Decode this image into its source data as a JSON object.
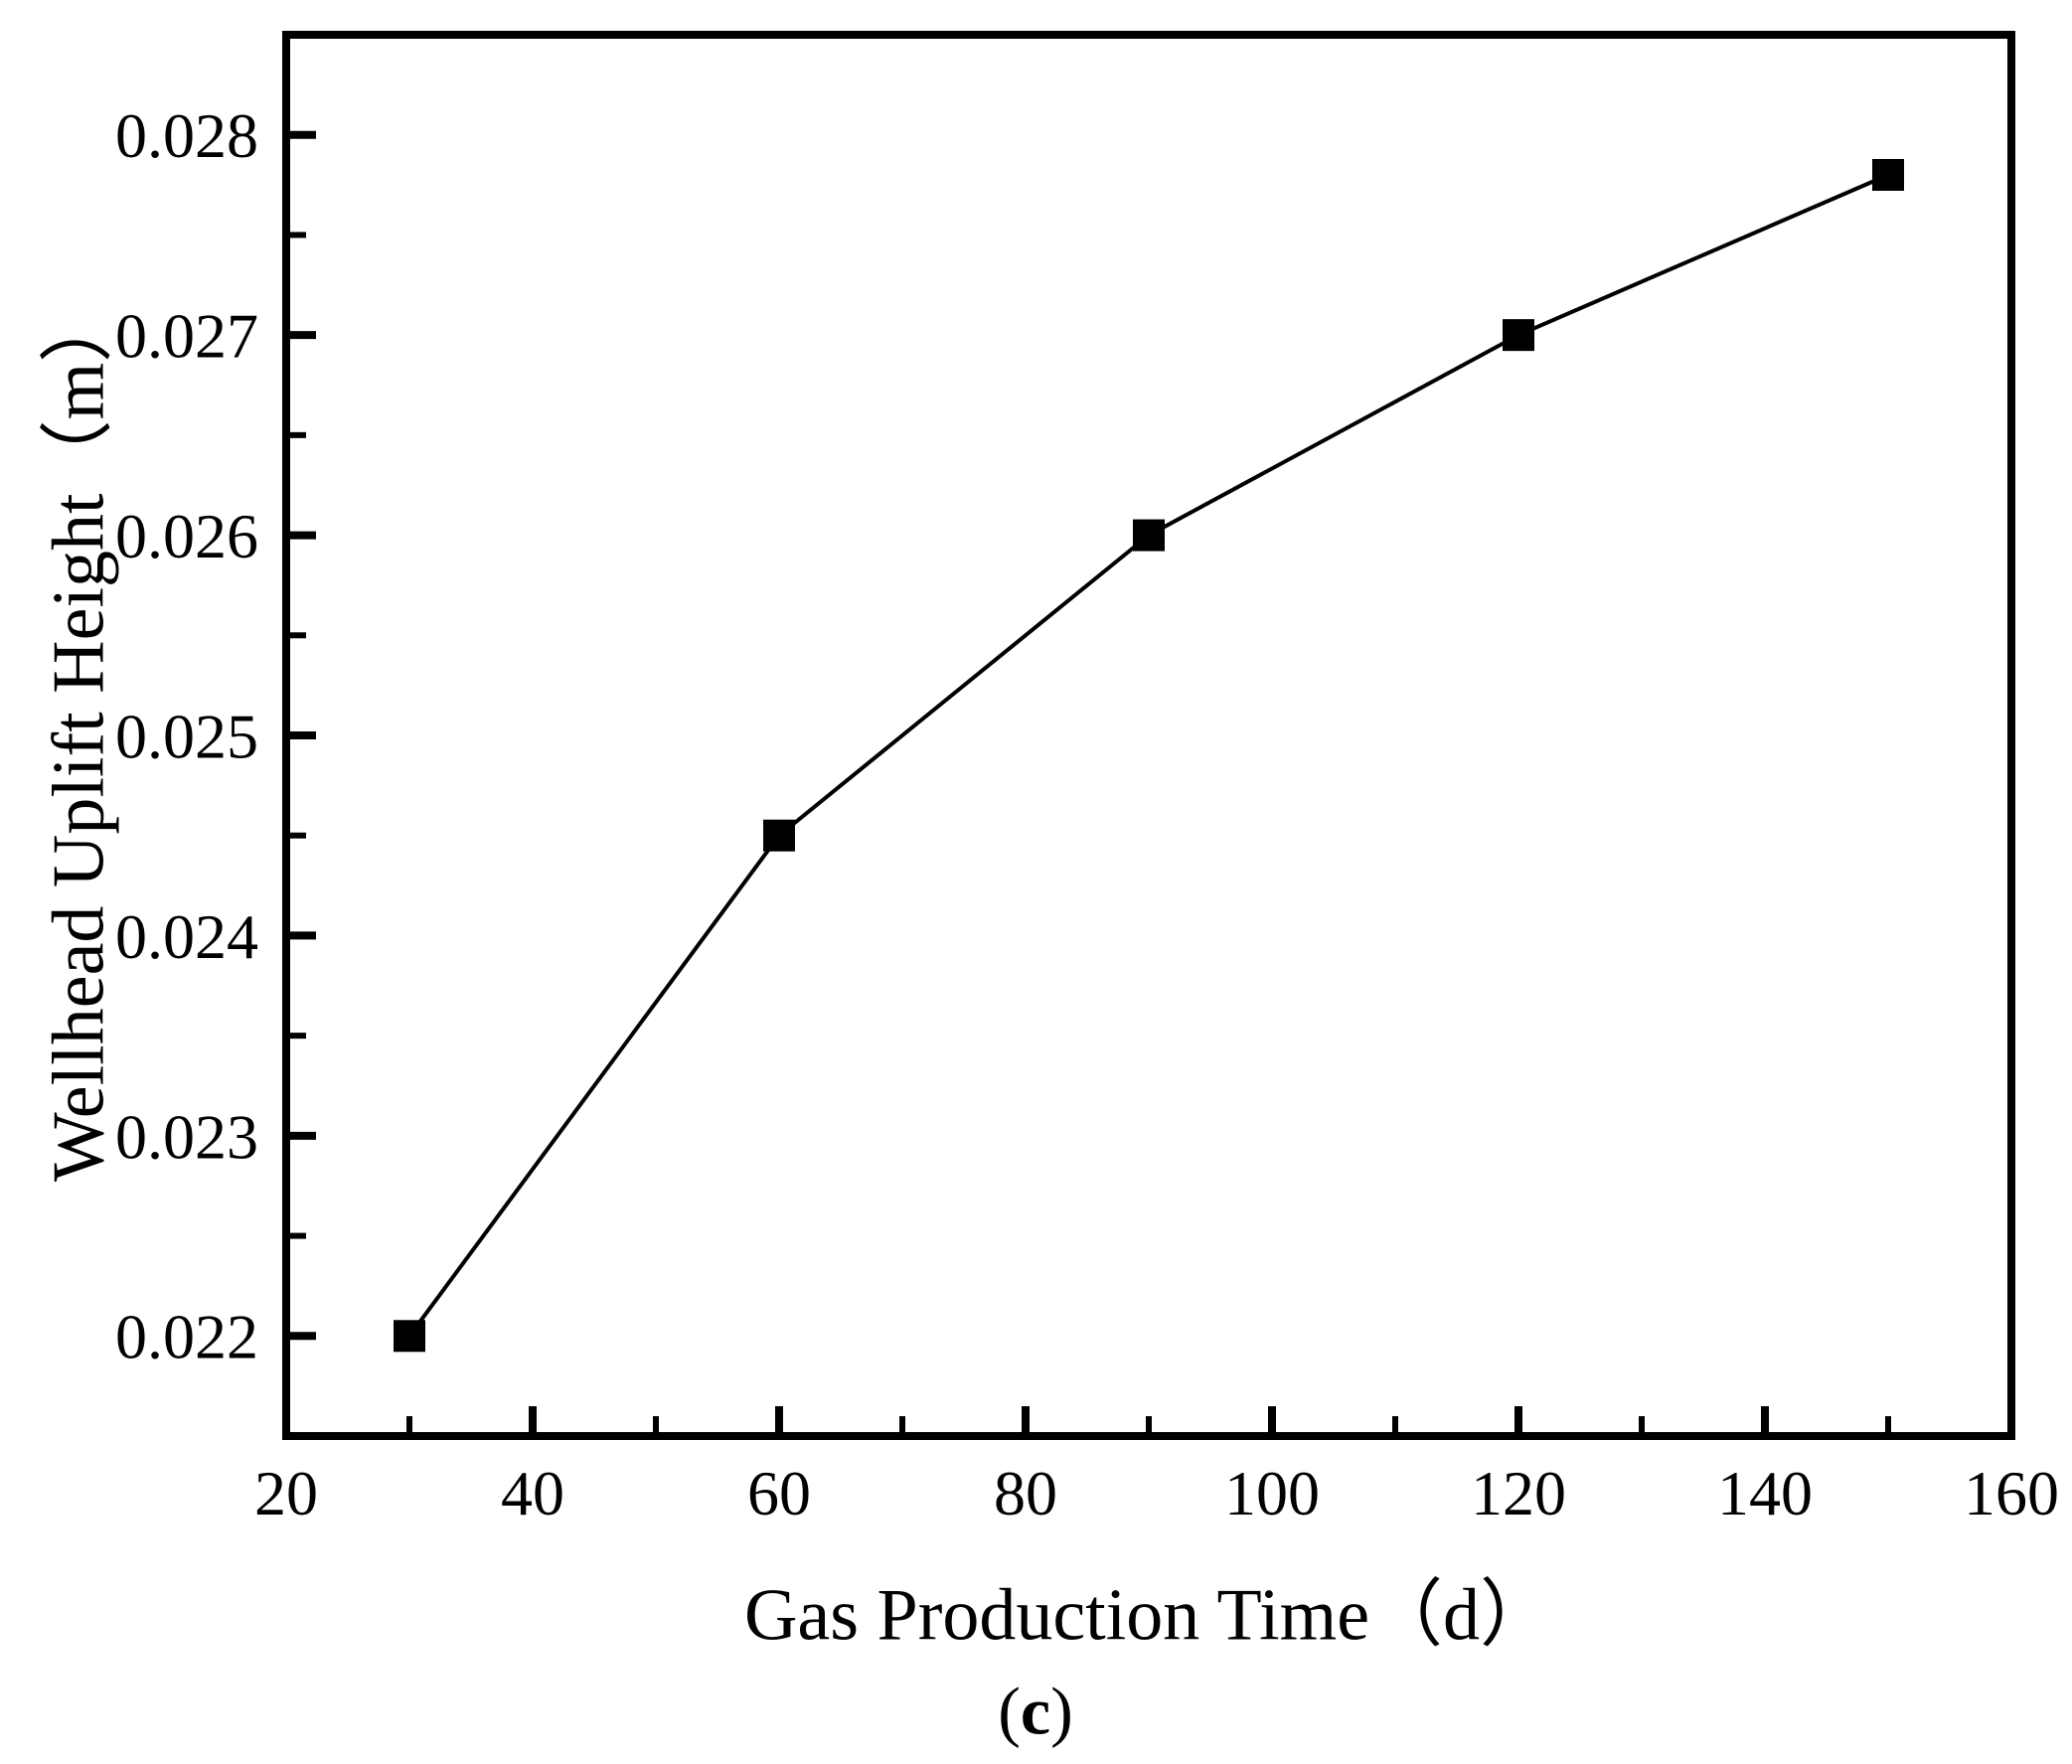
{
  "figure": {
    "caption_open": "(",
    "caption_letter": "c",
    "caption_close": ")"
  },
  "chart_data": {
    "type": "line",
    "title": "",
    "xlabel": "Gas Production Time（d）",
    "ylabel": "Wellhead Uplift Height（m）",
    "x": [
      30,
      60,
      90,
      120,
      150
    ],
    "y": [
      0.022,
      0.0245,
      0.026,
      0.027,
      0.0278
    ],
    "xlim": [
      20,
      160
    ],
    "ylim": [
      0.0215,
      0.0285
    ],
    "x_major_ticks": [
      20,
      40,
      60,
      80,
      100,
      120,
      140,
      160
    ],
    "x_minor_ticks": [
      30,
      50,
      70,
      90,
      110,
      130,
      150
    ],
    "y_major_ticks": [
      0.022,
      0.023,
      0.024,
      0.025,
      0.026,
      0.027,
      0.028
    ],
    "y_minor_ticks": [
      0.0225,
      0.0235,
      0.0245,
      0.0255,
      0.0265,
      0.0275
    ],
    "x_tick_labels": [
      "20",
      "40",
      "60",
      "80",
      "100",
      "120",
      "140",
      "160"
    ],
    "y_tick_labels": [
      "0.022",
      "0.023",
      "0.024",
      "0.025",
      "0.026",
      "0.027",
      "0.028"
    ],
    "marker": "filled-square",
    "line_color": "#000000",
    "marker_color": "#000000",
    "background": "#ffffff",
    "grid": false,
    "legend": null,
    "tick_direction": "in"
  }
}
